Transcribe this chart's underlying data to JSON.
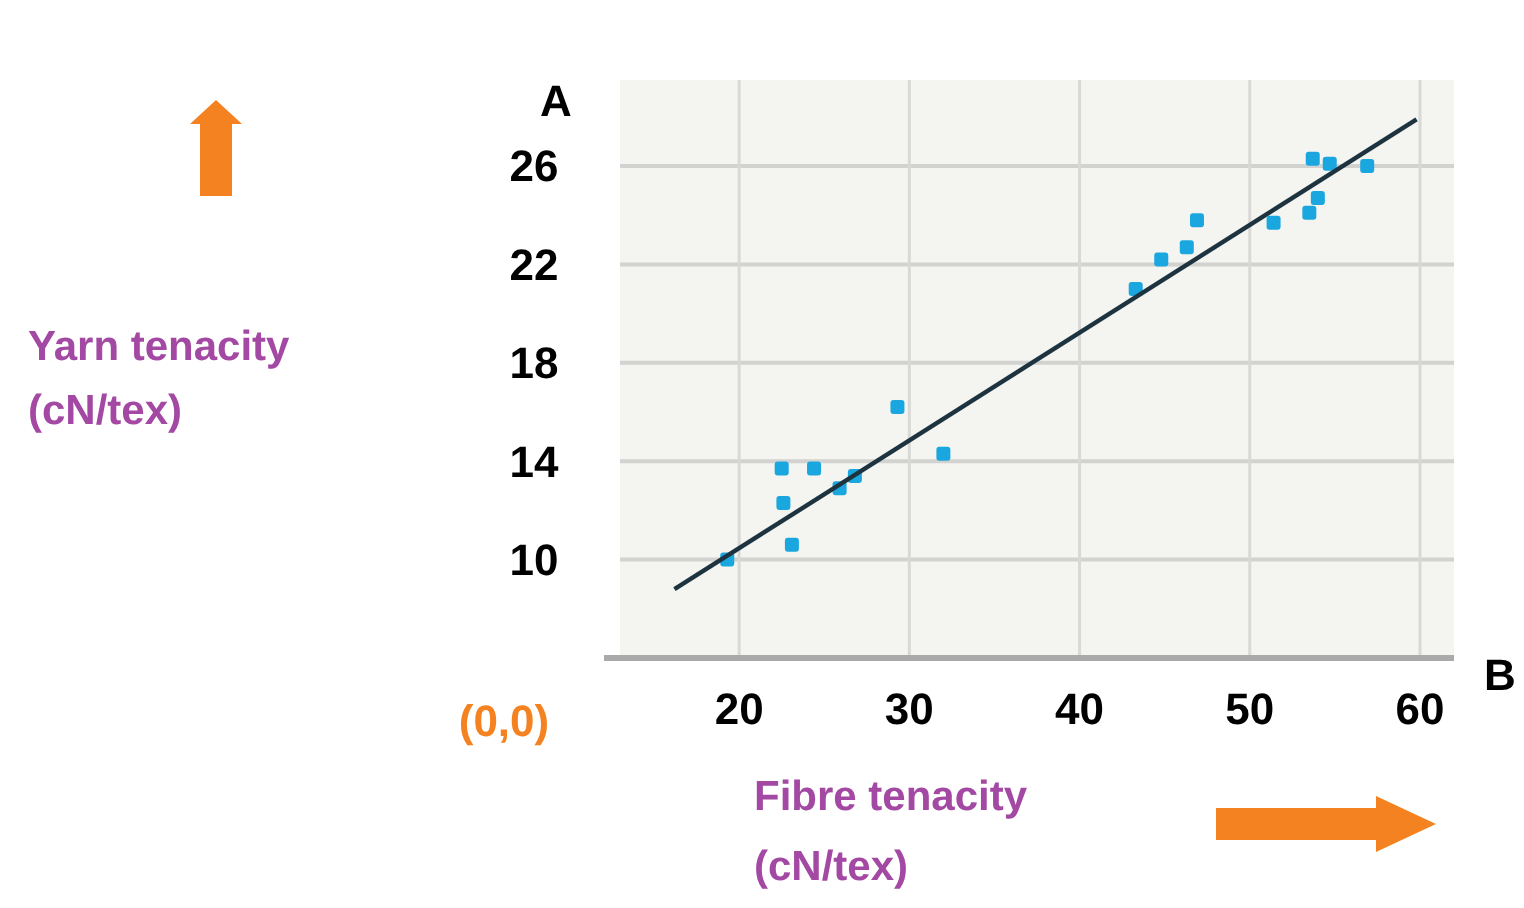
{
  "chart_data": {
    "type": "scatter",
    "xlabel": "Fibre tenacity\n(cN/tex)",
    "annotations": [
      "A",
      "B",
      "(0,0)",
      "Yarn tenacity\n(cN/tex)"
    ],
    "xlim": [
      13,
      62
    ],
    "ylim": [
      6,
      29.5
    ],
    "xticks": [
      20,
      30,
      40,
      50,
      60
    ],
    "yticks": [
      10,
      14,
      18,
      22,
      26
    ],
    "grid": true,
    "marker": "square",
    "series": [
      {
        "color": "#1aa7e0",
        "x": [
          19.3,
          22.5,
          22.6,
          23.1,
          24.4,
          25.9,
          26.8,
          29.3,
          32.0,
          43.3,
          44.8,
          46.3,
          46.9,
          51.4,
          53.5,
          54.0,
          53.7,
          54.7,
          56.9
        ],
        "values": [
          10.0,
          13.7,
          12.3,
          10.6,
          13.7,
          12.9,
          13.4,
          16.2,
          14.3,
          21.0,
          22.2,
          22.7,
          23.8,
          23.7,
          24.1,
          24.7,
          26.3,
          26.1,
          26.0
        ]
      },
      {
        "type": "line",
        "color": "#1d3440",
        "line_style": "solid",
        "marker": "none",
        "x": [
          16.2,
          59.8
        ],
        "values": [
          8.8,
          27.9
        ]
      }
    ]
  }
}
